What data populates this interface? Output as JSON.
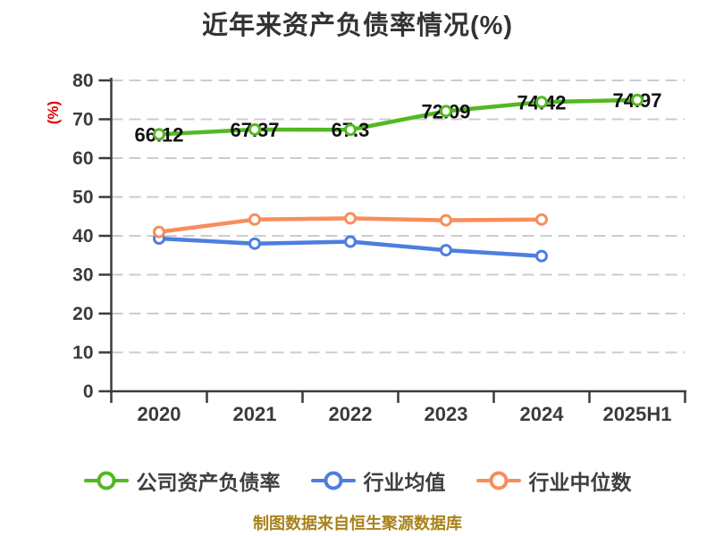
{
  "page": {
    "background": "#ffffff"
  },
  "colors": {
    "title": "#333333",
    "axis": "#3b3b3b",
    "grid": "#cccccc",
    "tick_label": "#3b3b3b",
    "data_label": "#111111",
    "legend_text": "#3f3f3f",
    "footer": "#a8821b",
    "ylabel": "#e60000"
  },
  "chart_data": {
    "type": "line",
    "title": "近年来资产负债率情况(%)",
    "ylabel": "(%)",
    "footer": "制图数据来自恒生聚源数据库",
    "categories": [
      "2020",
      "2021",
      "2022",
      "2023",
      "2024",
      "2025H1"
    ],
    "ylim": [
      0,
      80
    ],
    "ytick_step": 10,
    "grid": "dashed-horizontal",
    "legend_position": "bottom",
    "series": [
      {
        "name": "公司资产负债率",
        "color": "#53b822",
        "values": [
          66.12,
          67.37,
          67.3,
          72.09,
          74.42,
          74.97
        ],
        "point_labels": [
          "66.12",
          "67.37",
          "67.3",
          "72.09",
          "74.42",
          "74.97"
        ]
      },
      {
        "name": "行业均值",
        "color": "#4d7ee0",
        "values": [
          39.3,
          38.0,
          38.5,
          36.3,
          34.8
        ],
        "point_labels": []
      },
      {
        "name": "行业中位数",
        "color": "#f88d5c",
        "values": [
          41.0,
          44.2,
          44.5,
          44.0,
          44.2
        ],
        "point_labels": []
      }
    ]
  }
}
